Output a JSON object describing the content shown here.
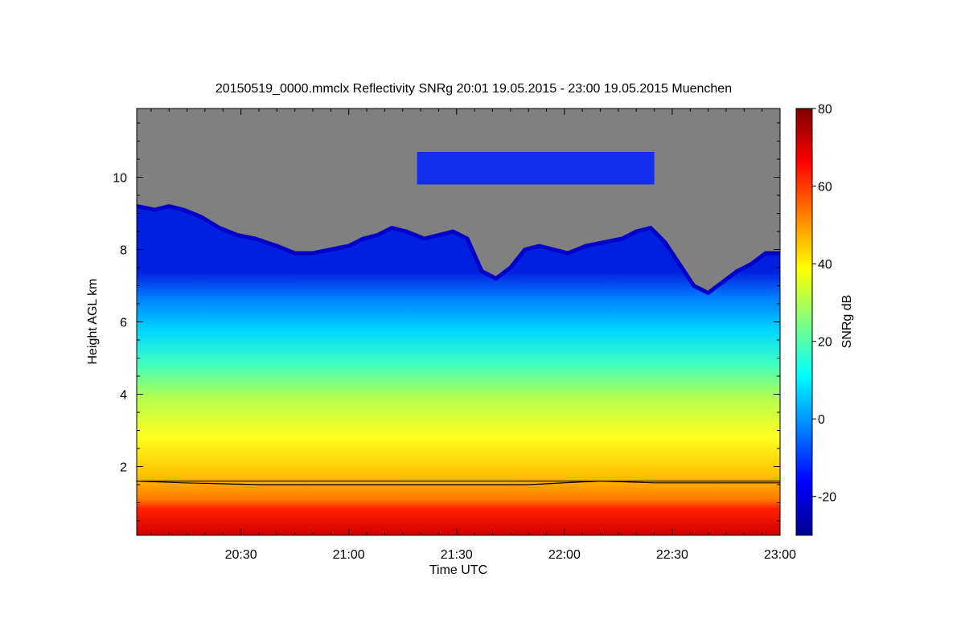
{
  "chart_data": {
    "type": "heatmap",
    "title": "20150519_0000.mmclx Reflectivity SNRg   20:01 19.05.2015 - 23:00 19.05.2015 Muenchen",
    "xlabel": "Time UTC",
    "ylabel": "Height AGL km",
    "colorbar_label": "SNRg dB",
    "x_range_minutes_utc": [
      1201,
      1380
    ],
    "x_ticks": [
      {
        "label": "20:30",
        "minutes": 1230
      },
      {
        "label": "21:00",
        "minutes": 1260
      },
      {
        "label": "21:30",
        "minutes": 1290
      },
      {
        "label": "22:00",
        "minutes": 1320
      },
      {
        "label": "22:30",
        "minutes": 1350
      },
      {
        "label": "23:00",
        "minutes": 1380
      }
    ],
    "y_range_km": [
      0.1,
      11.9
    ],
    "y_ticks": [
      {
        "label": "2",
        "value": 2
      },
      {
        "label": "4",
        "value": 4
      },
      {
        "label": "6",
        "value": 6
      },
      {
        "label": "8",
        "value": 8
      },
      {
        "label": "10",
        "value": 10
      }
    ],
    "colorbar_range_db": [
      -30,
      80
    ],
    "colorbar_ticks": [
      {
        "label": "-20",
        "value": -20
      },
      {
        "label": "0",
        "value": 0
      },
      {
        "label": "20",
        "value": 20
      },
      {
        "label": "40",
        "value": 40
      },
      {
        "label": "60",
        "value": 60
      },
      {
        "label": "80",
        "value": 80
      }
    ],
    "no_signal_color": "#808080",
    "colormap": [
      "#00008f",
      "#0000ff",
      "#0080ff",
      "#00ffff",
      "#80ff80",
      "#ffff00",
      "#ff8000",
      "#ff0000",
      "#800000"
    ],
    "cloud_top_profile_km": [
      {
        "t": 1201,
        "h": 9.2
      },
      {
        "t": 1206,
        "h": 9.1
      },
      {
        "t": 1210,
        "h": 9.2
      },
      {
        "t": 1214,
        "h": 9.1
      },
      {
        "t": 1219,
        "h": 8.9
      },
      {
        "t": 1224,
        "h": 8.6
      },
      {
        "t": 1229,
        "h": 8.4
      },
      {
        "t": 1234,
        "h": 8.3
      },
      {
        "t": 1240,
        "h": 8.1
      },
      {
        "t": 1245,
        "h": 7.9
      },
      {
        "t": 1250,
        "h": 7.9
      },
      {
        "t": 1255,
        "h": 8.0
      },
      {
        "t": 1260,
        "h": 8.1
      },
      {
        "t": 1264,
        "h": 8.3
      },
      {
        "t": 1268,
        "h": 8.4
      },
      {
        "t": 1272,
        "h": 8.6
      },
      {
        "t": 1276,
        "h": 8.5
      },
      {
        "t": 1281,
        "h": 8.3
      },
      {
        "t": 1285,
        "h": 8.4
      },
      {
        "t": 1289,
        "h": 8.5
      },
      {
        "t": 1293,
        "h": 8.3
      },
      {
        "t": 1297,
        "h": 7.4
      },
      {
        "t": 1301,
        "h": 7.2
      },
      {
        "t": 1305,
        "h": 7.5
      },
      {
        "t": 1309,
        "h": 8.0
      },
      {
        "t": 1313,
        "h": 8.1
      },
      {
        "t": 1317,
        "h": 8.0
      },
      {
        "t": 1321,
        "h": 7.9
      },
      {
        "t": 1326,
        "h": 8.1
      },
      {
        "t": 1331,
        "h": 8.2
      },
      {
        "t": 1336,
        "h": 8.3
      },
      {
        "t": 1340,
        "h": 8.5
      },
      {
        "t": 1344,
        "h": 8.6
      },
      {
        "t": 1348,
        "h": 8.2
      },
      {
        "t": 1352,
        "h": 7.6
      },
      {
        "t": 1356,
        "h": 7.0
      },
      {
        "t": 1360,
        "h": 6.8
      },
      {
        "t": 1364,
        "h": 7.1
      },
      {
        "t": 1368,
        "h": 7.4
      },
      {
        "t": 1372,
        "h": 7.6
      },
      {
        "t": 1376,
        "h": 7.9
      },
      {
        "t": 1380,
        "h": 7.9
      }
    ],
    "cirrus_layer_km": {
      "t_start": 1279,
      "t_end": 1345,
      "h_bottom": 9.8,
      "h_top": 10.7
    },
    "melting_layer_km": [
      {
        "t": 1201,
        "h": 1.6
      },
      {
        "t": 1214,
        "h": 1.55
      },
      {
        "t": 1235,
        "h": 1.5
      },
      {
        "t": 1270,
        "h": 1.5
      },
      {
        "t": 1310,
        "h": 1.5
      },
      {
        "t": 1330,
        "h": 1.6
      },
      {
        "t": 1345,
        "h": 1.55
      },
      {
        "t": 1380,
        "h": 1.55
      }
    ],
    "grid": false,
    "legend": "colorbar-right"
  }
}
